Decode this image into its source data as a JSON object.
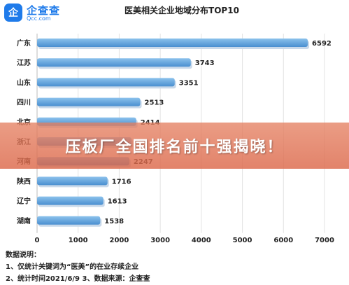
{
  "brand": {
    "badge": "企",
    "name": "企查查",
    "domain": "Qcc.com"
  },
  "banner": {
    "text": "压板厂全国排名前十强揭晓！"
  },
  "notes": {
    "heading": "数据说明：",
    "line1": "1、仅统计关键词为“医美”的在业存续企业",
    "line2": "2、统计时间2021/6/9   3、数据来源：企查查"
  },
  "colors": {
    "bar_top": "#8cc2ec",
    "bar_bottom": "#4a8fd0",
    "banner": "#e5805f",
    "brand": "#1f7bea"
  },
  "chart_data": {
    "type": "bar",
    "orientation": "horizontal",
    "title": "医美相关企业地域分布TOP10",
    "categories": [
      "广东",
      "江苏",
      "山东",
      "四川",
      "北京",
      "浙江",
      "河南",
      "陕西",
      "辽宁",
      "湖南"
    ],
    "values": [
      6592,
      3743,
      3351,
      2513,
      2414,
      2300,
      2247,
      1716,
      1613,
      1538
    ],
    "value_labels": [
      "6592",
      "3743",
      "3351",
      "2513",
      "2414",
      "",
      "2247",
      "1716",
      "1613",
      "1538"
    ],
    "xlim": [
      0,
      7000
    ],
    "xticks": [
      0,
      1000,
      2000,
      3000,
      4000,
      5000,
      6000,
      7000
    ],
    "grid": true,
    "xlabel": "",
    "ylabel": ""
  }
}
